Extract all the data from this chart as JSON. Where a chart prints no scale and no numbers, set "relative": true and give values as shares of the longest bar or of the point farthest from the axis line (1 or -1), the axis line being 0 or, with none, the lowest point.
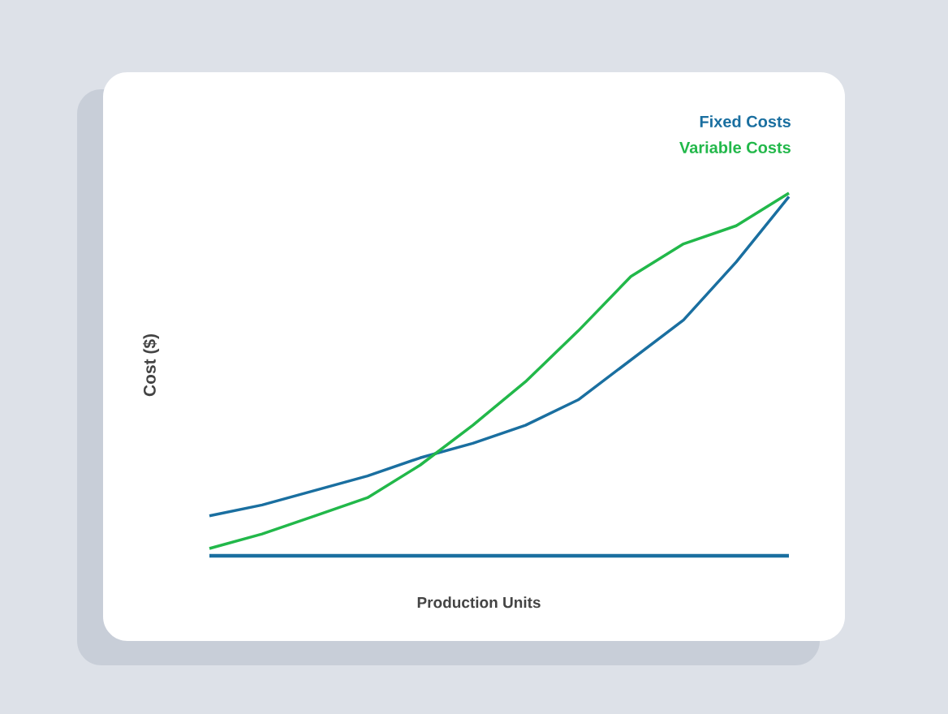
{
  "chart_data": {
    "type": "line",
    "relative": true,
    "xlabel": "Production Units",
    "ylabel": "Cost ($)",
    "legend": "top right",
    "categories": [
      null,
      null,
      null,
      null,
      null,
      null,
      null,
      null,
      null,
      null,
      null,
      null
    ],
    "series": [
      {
        "name": "Fixed Costs",
        "color": "#1a6fa0",
        "values": [
          0.11,
          0.14,
          0.18,
          0.22,
          0.27,
          0.31,
          0.36,
          0.43,
          0.54,
          0.65,
          0.81,
          0.99
        ]
      },
      {
        "name": "Variable Costs",
        "color": "#22b84a",
        "values": [
          0.02,
          0.06,
          0.11,
          0.16,
          0.25,
          0.36,
          0.48,
          0.62,
          0.77,
          0.86,
          0.91,
          1.0
        ]
      }
    ]
  }
}
